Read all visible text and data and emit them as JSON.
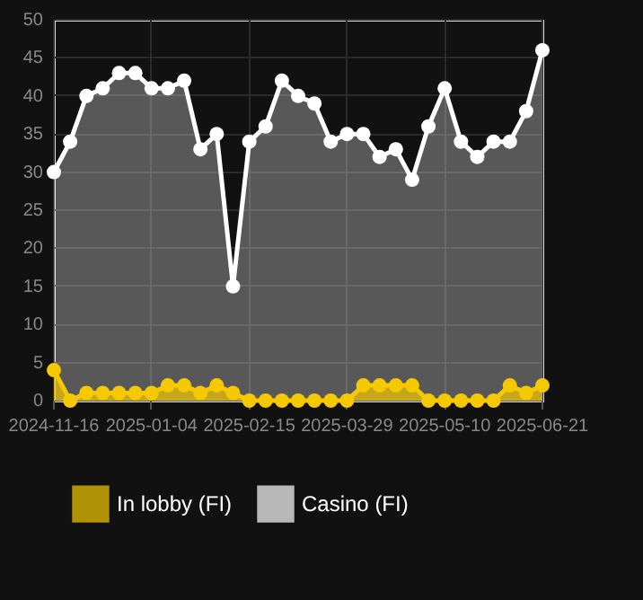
{
  "chart_data": {
    "type": "area",
    "categories": [
      "2024-11-16",
      null,
      null,
      null,
      null,
      null,
      "2025-01-04",
      null,
      null,
      null,
      null,
      null,
      "2025-02-15",
      null,
      null,
      null,
      null,
      null,
      "2025-03-29",
      null,
      null,
      null,
      null,
      null,
      "2025-05-10",
      null,
      null,
      null,
      null,
      null,
      "2025-06-21"
    ],
    "series": [
      {
        "name": "In lobby (FI)",
        "color": "#f5c800",
        "values": [
          4,
          0,
          1,
          1,
          1,
          1,
          1,
          2,
          2,
          1,
          2,
          1,
          0,
          0,
          0,
          0,
          0,
          0,
          0,
          2,
          2,
          2,
          2,
          0,
          0,
          0,
          0,
          0,
          2,
          1,
          2
        ]
      },
      {
        "name": "Casino (FI)",
        "color": "#ffffff",
        "values": [
          30,
          34,
          40,
          41,
          43,
          43,
          41,
          41,
          42,
          33,
          35,
          15,
          34,
          36,
          42,
          40,
          39,
          34,
          35,
          35,
          32,
          33,
          29,
          36,
          41,
          34,
          32,
          34,
          34,
          38,
          46
        ]
      }
    ],
    "ylim": [
      0,
      50
    ],
    "yticks": [
      0,
      5,
      10,
      15,
      20,
      25,
      30,
      35,
      40,
      45,
      50
    ],
    "grid": true,
    "legend": "bottom",
    "marker": "circle",
    "line_style": "solid"
  }
}
